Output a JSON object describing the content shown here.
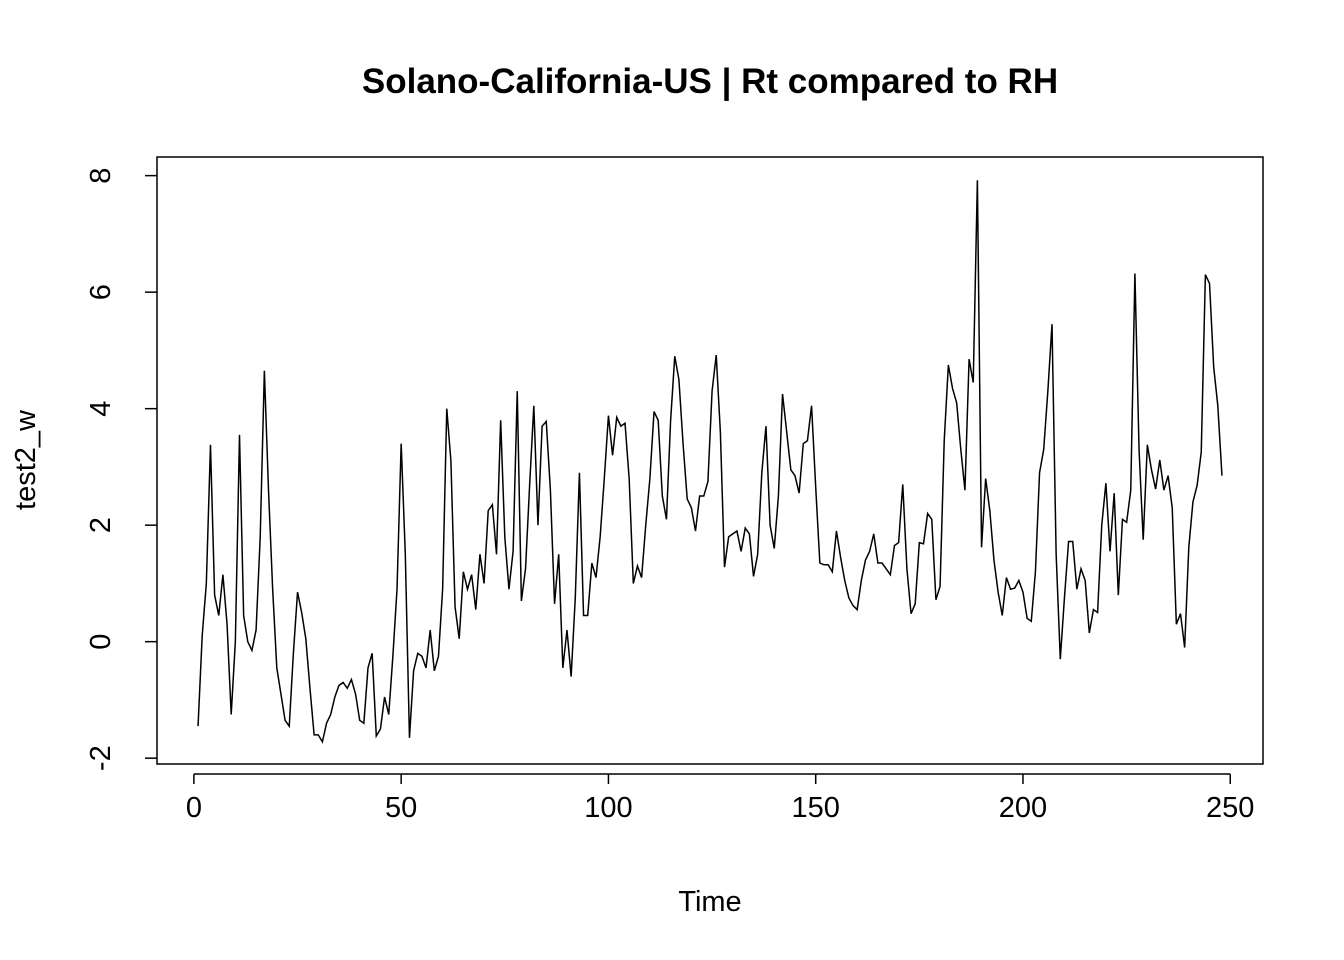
{
  "chart_data": {
    "type": "line",
    "title": "Solano-California-US | Rt compared to RH",
    "xlabel": "Time",
    "ylabel": "test2_w",
    "xlim": [
      -8.9,
      257.9
    ],
    "ylim": [
      -2.1,
      8.32
    ],
    "xticks": [
      0,
      50,
      100,
      150,
      200,
      250
    ],
    "yticks": [
      -2,
      0,
      2,
      4,
      6,
      8
    ],
    "grid": false,
    "x": [
      1,
      2,
      3,
      4,
      5,
      6,
      7,
      8,
      9,
      10,
      11,
      12,
      13,
      14,
      15,
      16,
      17,
      18,
      19,
      20,
      21,
      22,
      23,
      24,
      25,
      26,
      27,
      28,
      29,
      30,
      31,
      32,
      33,
      34,
      35,
      36,
      37,
      38,
      39,
      40,
      41,
      42,
      43,
      44,
      45,
      46,
      47,
      48,
      49,
      50,
      51,
      52,
      53,
      54,
      55,
      56,
      57,
      58,
      59,
      60,
      61,
      62,
      63,
      64,
      65,
      66,
      67,
      68,
      69,
      70,
      71,
      72,
      73,
      74,
      75,
      76,
      77,
      78,
      79,
      80,
      81,
      82,
      83,
      84,
      85,
      86,
      87,
      88,
      89,
      90,
      91,
      92,
      93,
      94,
      95,
      96,
      97,
      98,
      99,
      100,
      101,
      102,
      103,
      104,
      105,
      106,
      107,
      108,
      109,
      110,
      111,
      112,
      113,
      114,
      115,
      116,
      117,
      118,
      119,
      120,
      121,
      122,
      123,
      124,
      125,
      126,
      127,
      128,
      129,
      130,
      131,
      132,
      133,
      134,
      135,
      136,
      137,
      138,
      139,
      140,
      141,
      142,
      143,
      144,
      145,
      146,
      147,
      148,
      149,
      150,
      151,
      152,
      153,
      154,
      155,
      156,
      157,
      158,
      159,
      160,
      161,
      162,
      163,
      164,
      165,
      166,
      167,
      168,
      169,
      170,
      171,
      172,
      173,
      174,
      175,
      176,
      177,
      178,
      179,
      180,
      181,
      182,
      183,
      184,
      185,
      186,
      187,
      188,
      189,
      190,
      191,
      192,
      193,
      194,
      195,
      196,
      197,
      198,
      199,
      200,
      201,
      202,
      203,
      204,
      205,
      206,
      207,
      208,
      209,
      210,
      211,
      212,
      213,
      214,
      215,
      216,
      217,
      218,
      219,
      220,
      221,
      222,
      223,
      224,
      225,
      226,
      227,
      228,
      229,
      230,
      231,
      232,
      233,
      234,
      235,
      236,
      237,
      238,
      239,
      240,
      241,
      242,
      243,
      244,
      245,
      246,
      247,
      248
    ],
    "series": [
      {
        "values": [
          -1.45,
          0.1,
          1.0,
          3.38,
          0.8,
          0.45,
          1.15,
          0.3,
          -1.25,
          0.0,
          3.55,
          0.45,
          0.0,
          -0.15,
          0.2,
          1.8,
          4.65,
          2.6,
          0.9,
          -0.45,
          -0.9,
          -1.35,
          -1.45,
          -0.2,
          0.85,
          0.5,
          0.05,
          -0.8,
          -1.6,
          -1.6,
          -1.72,
          -1.4,
          -1.25,
          -0.95,
          -0.75,
          -0.7,
          -0.8,
          -0.65,
          -0.9,
          -1.35,
          -1.4,
          -0.45,
          -0.2,
          -1.62,
          -1.5,
          -0.95,
          -1.25,
          -0.25,
          0.9,
          3.4,
          1.5,
          -1.65,
          -0.5,
          -0.2,
          -0.25,
          -0.45,
          0.2,
          -0.5,
          -0.25,
          0.9,
          4.0,
          3.1,
          0.6,
          0.05,
          1.2,
          0.9,
          1.15,
          0.55,
          1.5,
          1.0,
          2.25,
          2.35,
          1.5,
          3.8,
          1.8,
          0.9,
          1.55,
          4.3,
          0.7,
          1.25,
          2.7,
          4.05,
          2.0,
          3.7,
          3.78,
          2.6,
          0.65,
          1.5,
          -0.45,
          0.2,
          -0.6,
          0.75,
          2.9,
          0.45,
          0.45,
          1.35,
          1.1,
          1.8,
          2.8,
          3.88,
          3.2,
          3.85,
          3.7,
          3.75,
          2.8,
          1.0,
          1.3,
          1.1,
          2.0,
          2.8,
          3.95,
          3.8,
          2.5,
          2.1,
          3.8,
          4.9,
          4.5,
          3.4,
          2.45,
          2.3,
          1.9,
          2.5,
          2.5,
          2.75,
          4.3,
          4.92,
          3.6,
          1.28,
          1.8,
          1.85,
          1.9,
          1.55,
          1.95,
          1.85,
          1.12,
          1.5,
          2.9,
          3.7,
          2.0,
          1.6,
          2.5,
          4.25,
          3.6,
          2.95,
          2.85,
          2.55,
          3.4,
          3.45,
          4.05,
          2.65,
          1.35,
          1.32,
          1.32,
          1.2,
          1.9,
          1.45,
          1.05,
          0.75,
          0.62,
          0.55,
          1.05,
          1.4,
          1.55,
          1.85,
          1.35,
          1.35,
          1.25,
          1.15,
          1.65,
          1.7,
          2.7,
          1.25,
          0.48,
          0.65,
          1.7,
          1.68,
          2.2,
          2.1,
          0.72,
          0.95,
          3.45,
          4.75,
          4.35,
          4.1,
          3.3,
          2.6,
          4.85,
          4.45,
          7.92,
          1.62,
          2.8,
          2.25,
          1.4,
          0.85,
          0.45,
          1.1,
          0.9,
          0.92,
          1.05,
          0.85,
          0.4,
          0.35,
          1.2,
          2.9,
          3.3,
          4.3,
          5.45,
          1.5,
          -0.3,
          0.75,
          1.72,
          1.72,
          0.9,
          1.25,
          1.05,
          0.15,
          0.55,
          0.5,
          2.0,
          2.72,
          1.55,
          2.55,
          0.8,
          2.1,
          2.05,
          2.6,
          6.32,
          3.3,
          1.75,
          3.38,
          2.95,
          2.62,
          3.12,
          2.6,
          2.85,
          2.3,
          0.3,
          0.48,
          -0.1,
          1.62,
          2.4,
          2.68,
          3.25,
          6.3,
          6.15,
          4.72,
          4.05,
          2.85
        ]
      }
    ]
  }
}
